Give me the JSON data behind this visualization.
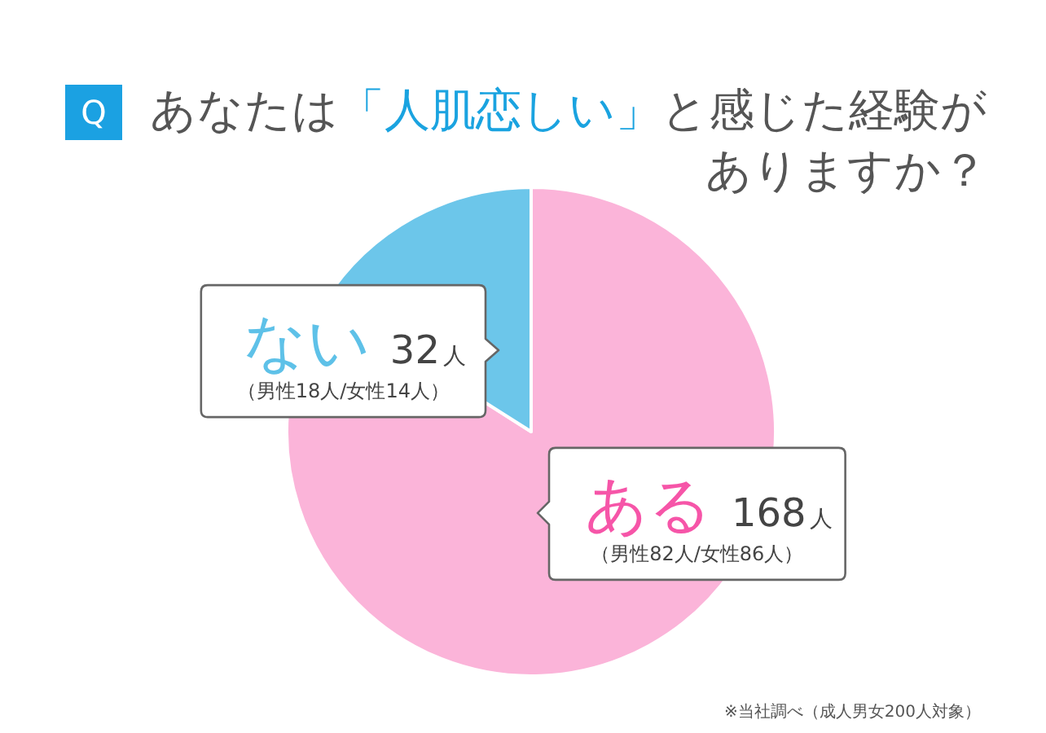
{
  "chart_data": {
    "type": "pie",
    "title": "Q あなたは「人肌恋しい」と感じた経験がありますか？",
    "categories": [
      "ある",
      "ない"
    ],
    "values": [
      168,
      32
    ],
    "colors": [
      "#fbb4d9",
      "#6cc6ea"
    ],
    "value_labels": [
      "168人",
      "32人"
    ],
    "annotations": [
      "（男性82人/女性86人）",
      "（男性18人/女性14人）",
      "※当社調べ（成人男女200人対象）"
    ]
  }
}
